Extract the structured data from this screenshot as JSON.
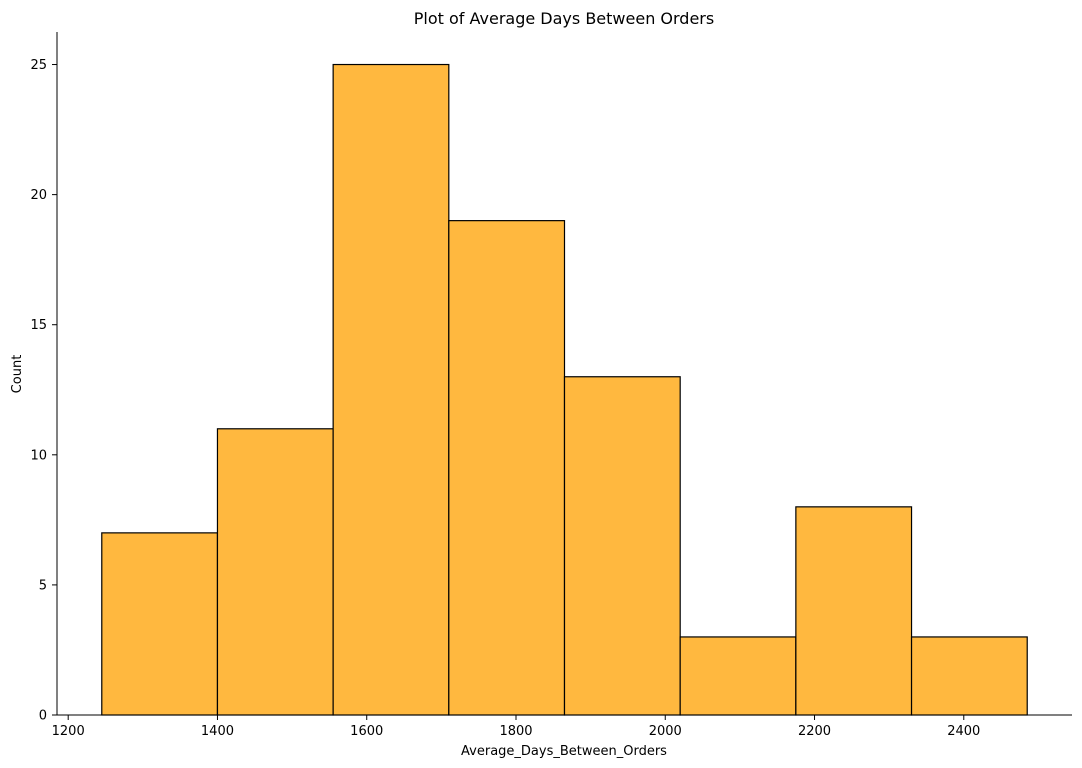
{
  "chart_data": {
    "type": "histogram",
    "title": "Plot of Average Days Between Orders",
    "xlabel": "Average_Days_Between_Orders",
    "ylabel": "Count",
    "bin_edges": [
      1245,
      1400,
      1555,
      1710,
      1865,
      2020,
      2175,
      2330,
      2485
    ],
    "counts": [
      7,
      11,
      25,
      19,
      13,
      3,
      8,
      3
    ],
    "xlim": [
      1185,
      2545
    ],
    "ylim": [
      0,
      26.25
    ],
    "xticks": [
      1200,
      1400,
      1600,
      1800,
      2000,
      2200,
      2400
    ],
    "yticks": [
      0,
      5,
      10,
      15,
      20,
      25
    ],
    "bar_color": "#ffb83f",
    "edge_color": "#000000",
    "grid": false,
    "spines_visible": [
      "left",
      "bottom"
    ]
  }
}
